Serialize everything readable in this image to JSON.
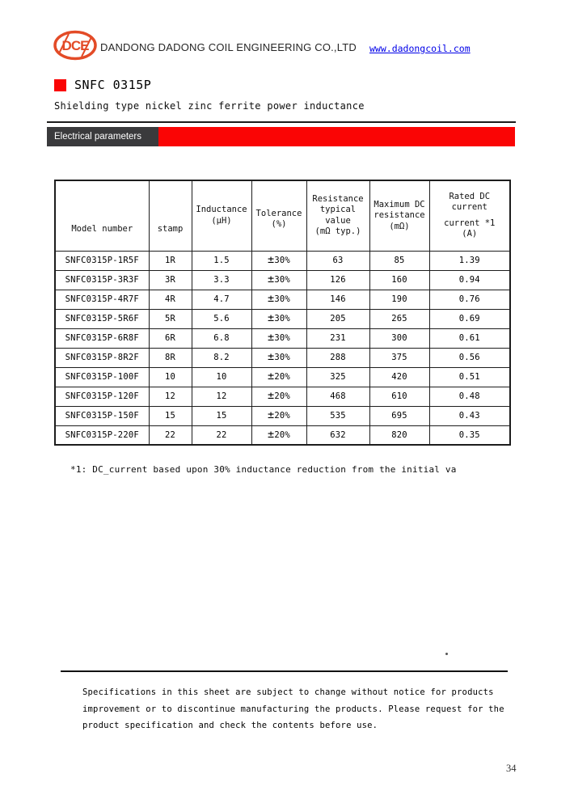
{
  "header": {
    "logo": "DCE",
    "company_name": "DANDONG DADONG COIL ENGINEERING CO.,LTD",
    "website": "www.dadongcoil.com"
  },
  "product": {
    "model": "SNFC 0315P",
    "description": "Shielding type nickel zinc ferrite power inductance"
  },
  "section_banner": {
    "label": "Electrical parameters"
  },
  "table": {
    "columns": [
      {
        "lines": [
          "Model number"
        ]
      },
      {
        "lines": [
          "stamp"
        ]
      },
      {
        "lines": [
          "Inductance",
          "(μH)"
        ]
      },
      {
        "lines": [
          "Tolerance",
          "(%)"
        ]
      },
      {
        "lines": [
          "Resistance",
          "typical value",
          "(mΩ typ.)"
        ]
      },
      {
        "lines": [
          "Maximum DC",
          "resistance",
          "(mΩ)"
        ]
      },
      {
        "lines": [
          "Rated DC",
          "current",
          "current *1",
          "(A)"
        ]
      }
    ],
    "rows": [
      [
        "SNFC0315P-1R5F",
        "1R",
        "1.5",
        "±30%",
        "63",
        "85",
        "1.39"
      ],
      [
        "SNFC0315P-3R3F",
        "3R",
        "3.3",
        "±30%",
        "126",
        "160",
        "0.94"
      ],
      [
        "SNFC0315P-4R7F",
        "4R",
        "4.7",
        "±30%",
        "146",
        "190",
        "0.76"
      ],
      [
        "SNFC0315P-5R6F",
        "5R",
        "5.6",
        "±30%",
        "205",
        "265",
        "0.69"
      ],
      [
        "SNFC0315P-6R8F",
        "6R",
        "6.8",
        "±30%",
        "231",
        "300",
        "0.61"
      ],
      [
        "SNFC0315P-8R2F",
        "8R",
        "8.2",
        "±30%",
        "288",
        "375",
        "0.56"
      ],
      [
        "SNFC0315P-100F",
        "10",
        "10",
        "±20%",
        "325",
        "420",
        "0.51"
      ],
      [
        "SNFC0315P-120F",
        "12",
        "12",
        "±20%",
        "468",
        "610",
        "0.48"
      ],
      [
        "SNFC0315P-150F",
        "15",
        "15",
        "±20%",
        "535",
        "695",
        "0.43"
      ],
      [
        "SNFC0315P-220F",
        "22",
        "22",
        "±20%",
        "632",
        "820",
        "0.35"
      ]
    ]
  },
  "footnote": "*1: DC_current based upon 30% inductance reduction from the initial va",
  "disclaimer": {
    "lines": [
      "Specifications in this sheet are subject to change without notice for products",
      "improvement or to discontinue manufacturing the products. Please request for the",
      "product specification and check the contents before use."
    ]
  },
  "page": {
    "number": "34"
  },
  "colors": {
    "accent_red": "#fa0505",
    "logo_red": "#e34b27",
    "banner_dark": "#3a3a3c",
    "link_blue": "#0000e8"
  }
}
